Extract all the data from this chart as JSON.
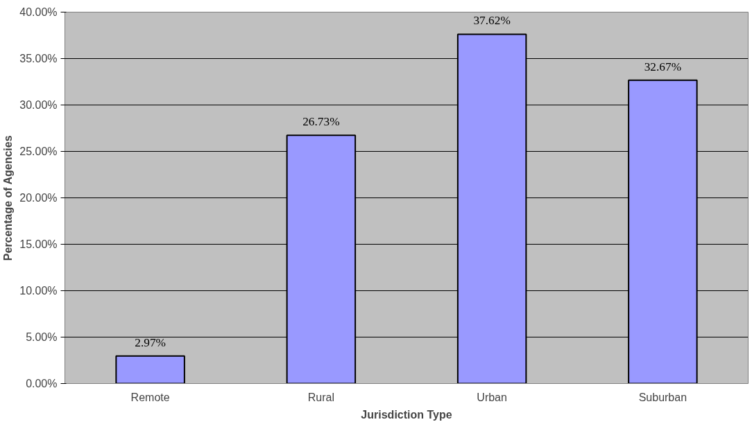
{
  "chart_data": {
    "type": "bar",
    "xlabel": "Jurisdiction Type",
    "ylabel": "Percentage of Agencies",
    "categories": [
      "Remote",
      "Rural",
      "Urban",
      "Suburban"
    ],
    "values": [
      2.97,
      26.73,
      37.62,
      32.67
    ],
    "value_labels": [
      "2.97%",
      "26.73%",
      "37.62%",
      "32.67%"
    ],
    "color": "#9999ff",
    "ylim": [
      0,
      40
    ],
    "yticks": [
      {
        "value": 0,
        "label": "0.00%"
      },
      {
        "value": 5,
        "label": "5.00%"
      },
      {
        "value": 10,
        "label": "10.00%"
      },
      {
        "value": 15,
        "label": "15.00%"
      },
      {
        "value": 20,
        "label": "20.00%"
      },
      {
        "value": 25,
        "label": "25.00%"
      },
      {
        "value": 30,
        "label": "30.00%"
      },
      {
        "value": 35,
        "label": "35.00%"
      },
      {
        "value": 40,
        "label": "40.00%"
      }
    ],
    "grid": "y"
  }
}
